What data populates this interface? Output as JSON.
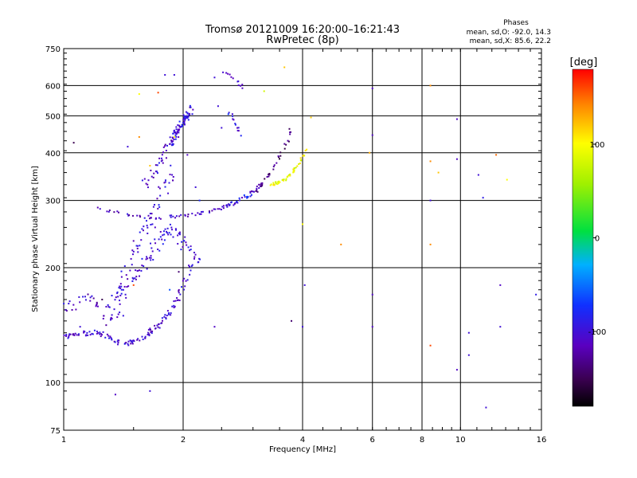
{
  "chart_data": {
    "type": "scatter",
    "title": "Tromsø 20121009 16:20:00–16:21:43",
    "subtitle": "RwPretec (8p)",
    "stats": {
      "title": "Phases",
      "line1": "mean, sd,O: -92.0, 14.3",
      "line2": "mean, sd,X:  85.6, 22.2"
    },
    "xlabel": "Frequency [MHz]",
    "ylabel": "Stationary phase Virtual Height [km]",
    "x_scale": "log",
    "y_scale": "log",
    "xlim": [
      1,
      16
    ],
    "ylim": [
      75,
      750
    ],
    "x_ticks": [
      {
        "value": 1,
        "label": "1"
      },
      {
        "value": 2,
        "label": "2"
      },
      {
        "value": 4,
        "label": "4"
      },
      {
        "value": 6,
        "label": "6"
      },
      {
        "value": 8,
        "label": "8"
      },
      {
        "value": 10,
        "label": "10"
      },
      {
        "value": 16,
        "label": "16"
      }
    ],
    "y_ticks": [
      {
        "value": 75,
        "label": "75"
      },
      {
        "value": 100,
        "label": "100"
      },
      {
        "value": 200,
        "label": "200"
      },
      {
        "value": 300,
        "label": "300"
      },
      {
        "value": 400,
        "label": "400"
      },
      {
        "value": 500,
        "label": "500"
      },
      {
        "value": 600,
        "label": "600"
      },
      {
        "value": 750,
        "label": "750"
      }
    ],
    "x_gridlines": [
      2,
      4,
      6,
      8,
      10
    ],
    "y_gridlines": [
      100,
      200,
      300,
      400,
      500,
      600
    ],
    "colorbar": {
      "label": "[deg]",
      "range": [
        -180,
        180
      ],
      "ticks": [
        {
          "value": 100,
          "label": "100"
        },
        {
          "value": 0,
          "label": "0"
        },
        {
          "value": -100,
          "label": "-100"
        }
      ]
    },
    "traces": [
      {
        "x": [
          1.0,
          1.03,
          1.06,
          1.1,
          1.15,
          1.2,
          1.25,
          1.3,
          1.35,
          1.4,
          1.45,
          1.5,
          1.55,
          1.6,
          1.65,
          1.7,
          1.75,
          1.8,
          1.85,
          1.9,
          1.95,
          2.0,
          2.05,
          2.1
        ],
        "y": [
          132,
          132,
          133,
          134,
          135,
          136,
          134,
          131,
          128,
          127,
          127,
          128,
          130,
          132,
          135,
          139,
          143,
          148,
          152,
          158,
          165,
          178,
          192,
          205
        ],
        "phase": -105,
        "n": 6,
        "jx": 0.015,
        "jy": 0.015
      },
      {
        "x": [
          1.0,
          1.04,
          1.08,
          1.12,
          1.16,
          1.2,
          1.25,
          1.3,
          1.35,
          1.4
        ],
        "y": [
          155,
          158,
          162,
          166,
          165,
          160,
          150,
          145,
          145,
          150
        ],
        "phase": -110,
        "n": 4,
        "jx": 0.03,
        "jy": 0.03
      },
      {
        "x": [
          1.3,
          1.35,
          1.4,
          1.45,
          1.5,
          1.55,
          1.6,
          1.65,
          1.7,
          1.75,
          1.8,
          1.85,
          1.9,
          1.95,
          2.0
        ],
        "y": [
          158,
          165,
          172,
          180,
          188,
          196,
          205,
          215,
          225,
          235,
          245,
          252,
          248,
          240,
          230
        ],
        "phase": -100,
        "n": 6,
        "jx": 0.03,
        "jy": 0.035
      },
      {
        "x": [
          1.35,
          1.4,
          1.45,
          1.5,
          1.55,
          1.6,
          1.65,
          1.7,
          1.75,
          1.8,
          1.85,
          1.9
        ],
        "y": [
          170,
          185,
          200,
          215,
          230,
          248,
          265,
          285,
          305,
          325,
          345,
          365
        ],
        "phase": -100,
        "n": 5,
        "jx": 0.03,
        "jy": 0.03
      },
      {
        "x": [
          1.6,
          1.65,
          1.7,
          1.75,
          1.8,
          1.85,
          1.9,
          1.95,
          2.0,
          2.05,
          2.1
        ],
        "y": [
          330,
          345,
          360,
          380,
          400,
          420,
          440,
          460,
          480,
          500,
          520
        ],
        "phase": -105,
        "n": 6,
        "jx": 0.02,
        "jy": 0.02
      },
      {
        "x": [
          1.85,
          1.9,
          1.95,
          2.0,
          2.05,
          2.1
        ],
        "y": [
          420,
          440,
          460,
          480,
          500,
          520
        ],
        "phase": -95,
        "n": 10,
        "jx": 0.015,
        "jy": 0.025
      },
      {
        "x": [
          1.2,
          1.3,
          1.4,
          1.5,
          1.6,
          1.7,
          1.8,
          1.9,
          2.0,
          2.1,
          2.2,
          2.3,
          2.4,
          2.5,
          2.6,
          2.7,
          2.8,
          2.9,
          3.0,
          3.1,
          3.2
        ],
        "y": [
          287,
          282,
          277,
          274,
          272,
          271,
          271,
          272,
          273,
          275,
          277,
          280,
          283,
          287,
          291,
          297,
          303,
          310,
          318,
          327,
          336
        ],
        "phase": -110,
        "n": 4,
        "jx": 0.01,
        "jy": 0.01
      },
      {
        "x": [
          2.5,
          2.6,
          2.7,
          2.8,
          2.9,
          3.0
        ],
        "y": [
          285,
          292,
          298,
          302,
          308,
          312
        ],
        "phase": -80,
        "n": 3,
        "jx": 0.01,
        "jy": 0.01
      },
      {
        "x": [
          3.05,
          3.1,
          3.2,
          3.3,
          3.4,
          3.5,
          3.6,
          3.7,
          3.75
        ],
        "y": [
          315,
          325,
          338,
          352,
          370,
          390,
          415,
          440,
          470
        ],
        "phase": -140,
        "n": 4,
        "jx": 0.008,
        "jy": 0.01
      },
      {
        "x": [
          3.3,
          3.4,
          3.5,
          3.6,
          3.7,
          3.8,
          3.9,
          4.0,
          4.1
        ],
        "y": [
          330,
          332,
          335,
          340,
          348,
          358,
          372,
          390,
          410
        ],
        "phase": 95,
        "n": 6,
        "jx": 0.006,
        "jy": 0.008
      },
      {
        "x": [
          2.0,
          2.05,
          2.1,
          2.15,
          2.2
        ],
        "y": [
          235,
          228,
          220,
          212,
          205
        ],
        "phase": -100,
        "n": 4,
        "jx": 0.01,
        "jy": 0.02
      },
      {
        "x": [
          2.5,
          2.6,
          2.7,
          2.8,
          2.9
        ],
        "y": [
          645,
          640,
          620,
          600,
          580
        ],
        "phase": -100,
        "n": 3,
        "jx": 0.01,
        "jy": 0.01
      },
      {
        "x": [
          2.6,
          2.65,
          2.7,
          2.75,
          2.8
        ],
        "y": [
          520,
          500,
          480,
          460,
          440
        ],
        "phase": -100,
        "n": 3,
        "jx": 0.01,
        "jy": 0.01
      }
    ],
    "extra_points": [
      [
        1.06,
        425,
        -150
      ],
      [
        1.45,
        415,
        -100
      ],
      [
        1.65,
        95,
        -100
      ],
      [
        1.73,
        575,
        160
      ],
      [
        1.55,
        570,
        100
      ],
      [
        1.8,
        640,
        -100
      ],
      [
        1.9,
        640,
        -100
      ],
      [
        2.4,
        630,
        -100
      ],
      [
        3.2,
        580,
        80
      ],
      [
        3.6,
        670,
        120
      ],
      [
        4.2,
        495,
        120
      ],
      [
        5.0,
        230,
        140
      ],
      [
        5.9,
        400,
        130
      ],
      [
        6.0,
        590,
        -110
      ],
      [
        6.0,
        445,
        -110
      ],
      [
        6.0,
        170,
        -110
      ],
      [
        6.0,
        140,
        -110
      ],
      [
        8.4,
        600,
        140
      ],
      [
        8.4,
        380,
        140
      ],
      [
        8.4,
        300,
        -100
      ],
      [
        8.4,
        230,
        140
      ],
      [
        8.4,
        125,
        160
      ],
      [
        8.8,
        355,
        120
      ],
      [
        9.8,
        490,
        -110
      ],
      [
        9.8,
        385,
        -110
      ],
      [
        9.8,
        108,
        -110
      ],
      [
        10.5,
        135,
        -100
      ],
      [
        10.5,
        118,
        -100
      ],
      [
        11.1,
        350,
        -100
      ],
      [
        11.4,
        305,
        -90
      ],
      [
        11.6,
        86,
        -100
      ],
      [
        12.3,
        395,
        150
      ],
      [
        12.6,
        180,
        -110
      ],
      [
        12.6,
        140,
        -100
      ],
      [
        13.1,
        340,
        100
      ],
      [
        15.5,
        170,
        -90
      ],
      [
        1.35,
        93,
        -110
      ],
      [
        4.0,
        140,
        -100
      ],
      [
        4.05,
        180,
        -100
      ],
      [
        4.0,
        260,
        100
      ],
      [
        2.4,
        140,
        -110
      ],
      [
        3.75,
        145,
        -140
      ],
      [
        1.55,
        440,
        140
      ],
      [
        1.65,
        370,
        120
      ],
      [
        1.9,
        440,
        100
      ],
      [
        1.05,
        155,
        -120
      ],
      [
        1.1,
        140,
        -100
      ],
      [
        1.25,
        165,
        -150
      ],
      [
        1.4,
        175,
        -80
      ],
      [
        1.5,
        180,
        160
      ],
      [
        2.6,
        505,
        -70
      ],
      [
        2.5,
        465,
        -100
      ],
      [
        2.45,
        530,
        -100
      ],
      [
        2.2,
        300,
        -80
      ],
      [
        1.95,
        195,
        -140
      ],
      [
        1.85,
        175,
        -60
      ],
      [
        2.05,
        395,
        -110
      ],
      [
        2.15,
        325,
        -100
      ],
      [
        1.7,
        255,
        -110
      ],
      [
        1.5,
        235,
        -120
      ]
    ]
  }
}
